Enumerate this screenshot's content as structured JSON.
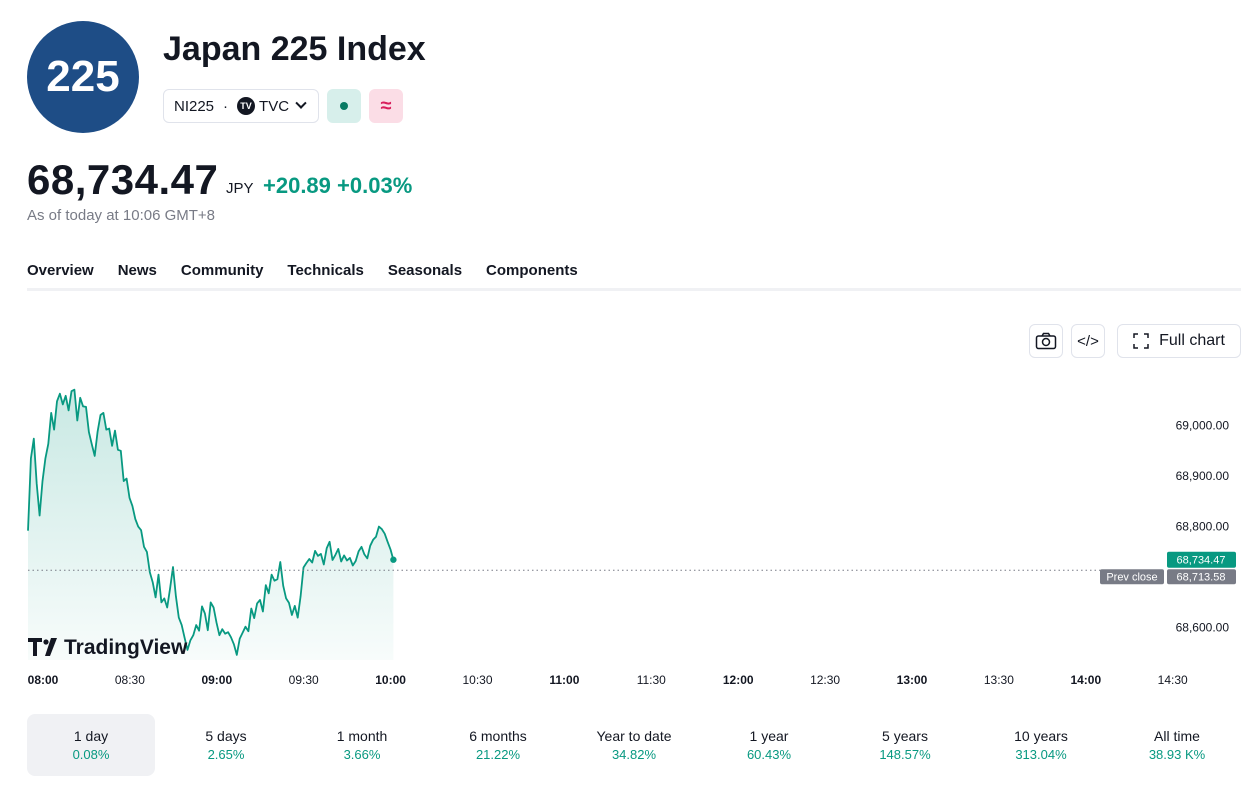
{
  "header": {
    "logo_text": "225",
    "title": "Japan 225 Index",
    "symbol": "NI225",
    "separator": "·",
    "exchange_logo": "TV",
    "exchange": "TVC",
    "market_open_color": "#087a63",
    "pink_badge_glyph": "≈"
  },
  "quote": {
    "price": "68,734.47",
    "currency": "JPY",
    "change": "+20.89",
    "change_pct": "+0.03%",
    "as_of": "As of today at 10:06 GMT+8",
    "positive_color": "#089981"
  },
  "tabs": [
    {
      "label": "Overview",
      "active": true
    },
    {
      "label": "News",
      "active": false
    },
    {
      "label": "Community",
      "active": false
    },
    {
      "label": "Technicals",
      "active": false
    },
    {
      "label": "Seasonals",
      "active": false
    },
    {
      "label": "Components",
      "active": false
    }
  ],
  "toolbar": {
    "camera_icon": "camera-icon",
    "embed_glyph": "</>",
    "full_chart_label": "Full chart"
  },
  "chart_data": {
    "type": "area",
    "watermark": "TradingView",
    "line_color": "#089981",
    "x_ticks": [
      {
        "label": "08:00",
        "bold": true
      },
      {
        "label": "08:30",
        "bold": false
      },
      {
        "label": "09:00",
        "bold": true
      },
      {
        "label": "09:30",
        "bold": false
      },
      {
        "label": "10:00",
        "bold": true
      },
      {
        "label": "10:30",
        "bold": false
      },
      {
        "label": "11:00",
        "bold": true
      },
      {
        "label": "11:30",
        "bold": false
      },
      {
        "label": "12:00",
        "bold": true
      },
      {
        "label": "12:30",
        "bold": false
      },
      {
        "label": "13:00",
        "bold": true
      },
      {
        "label": "13:30",
        "bold": false
      },
      {
        "label": "14:00",
        "bold": true
      },
      {
        "label": "14:30",
        "bold": false
      }
    ],
    "y_ticks": [
      "69,000.00",
      "68,900.00",
      "68,800.00",
      "68,600.00"
    ],
    "y_tick_values": [
      69000,
      68900,
      68800,
      68600
    ],
    "ylim": [
      68536,
      69110
    ],
    "last_value": 68734.47,
    "last_label": "68,734.47",
    "prev_close": 68713.58,
    "prev_close_label": "68,713.58",
    "prev_close_text": "Prev close",
    "series": [
      {
        "x": [
          0,
          1,
          2,
          3,
          4,
          5,
          6,
          7,
          8,
          9,
          10,
          11,
          12,
          13,
          14,
          15,
          16,
          17,
          18,
          19,
          20,
          21,
          22,
          23,
          24,
          25,
          26,
          27,
          28,
          29,
          30,
          31,
          32,
          33,
          34,
          35,
          36,
          37,
          38,
          39,
          40,
          41,
          42,
          43,
          44,
          45,
          46,
          47,
          48,
          49,
          50,
          51,
          52,
          53,
          54,
          55,
          56,
          57,
          58,
          59,
          60,
          61,
          62,
          63,
          64,
          65,
          66,
          67,
          68,
          69,
          70,
          71,
          72,
          73,
          74,
          75,
          76,
          77,
          78,
          79,
          80,
          81,
          82,
          83,
          84,
          85,
          86,
          87,
          88,
          89,
          90,
          91,
          92,
          93,
          94,
          95,
          96,
          97,
          98,
          99,
          100,
          101,
          102,
          103,
          104,
          105,
          106,
          107,
          108,
          109,
          110,
          111,
          112,
          113,
          114,
          115,
          116,
          117,
          118,
          119,
          120,
          121,
          122,
          123,
          124,
          125,
          126
        ],
        "y": [
          68792,
          68935,
          68974,
          68885,
          68822,
          68890,
          68935,
          68964,
          69025,
          68992,
          69048,
          69063,
          69042,
          69059,
          69030,
          69068,
          69071,
          69010,
          69055,
          69038,
          69037,
          68987,
          68963,
          68940,
          68988,
          69021,
          69025,
          68992,
          68994,
          68960,
          68990,
          68952,
          68950,
          68890,
          68895,
          68857,
          68841,
          68815,
          68800,
          68793,
          68760,
          68750,
          68710,
          68690,
          68660,
          68705,
          68650,
          68658,
          68640,
          68678,
          68720,
          68662,
          68620,
          68605,
          68580,
          68556,
          68575,
          68585,
          68605,
          68594,
          68642,
          68628,
          68595,
          68650,
          68640,
          68610,
          68585,
          68597,
          68588,
          68591,
          68581,
          68567,
          68546,
          68578,
          68590,
          68602,
          68593,
          68638,
          68619,
          68648,
          68655,
          68632,
          68684,
          68668,
          68705,
          68693,
          68696,
          68730,
          68683,
          68658,
          68649,
          68625,
          68643,
          68620,
          68662,
          68719,
          68728,
          68736,
          68729,
          68752,
          68742,
          68746,
          68725,
          68757,
          68770,
          68734,
          68744,
          68756,
          68731,
          68743,
          68733,
          68738,
          68723,
          68732,
          68751,
          68760,
          68745,
          68737,
          68762,
          68774,
          68780,
          68800,
          68795,
          68786,
          68770,
          68755,
          68734
        ]
      }
    ]
  },
  "periods": [
    {
      "label": "1 day",
      "value": "0.08%",
      "active": true
    },
    {
      "label": "5 days",
      "value": "2.65%",
      "active": false
    },
    {
      "label": "1 month",
      "value": "3.66%",
      "active": false
    },
    {
      "label": "6 months",
      "value": "21.22%",
      "active": false
    },
    {
      "label": "Year to date",
      "value": "34.82%",
      "active": false
    },
    {
      "label": "1 year",
      "value": "60.43%",
      "active": false
    },
    {
      "label": "5 years",
      "value": "148.57%",
      "active": false
    },
    {
      "label": "10 years",
      "value": "313.04%",
      "active": false
    },
    {
      "label": "All time",
      "value": "38.93 K%",
      "active": false
    }
  ]
}
